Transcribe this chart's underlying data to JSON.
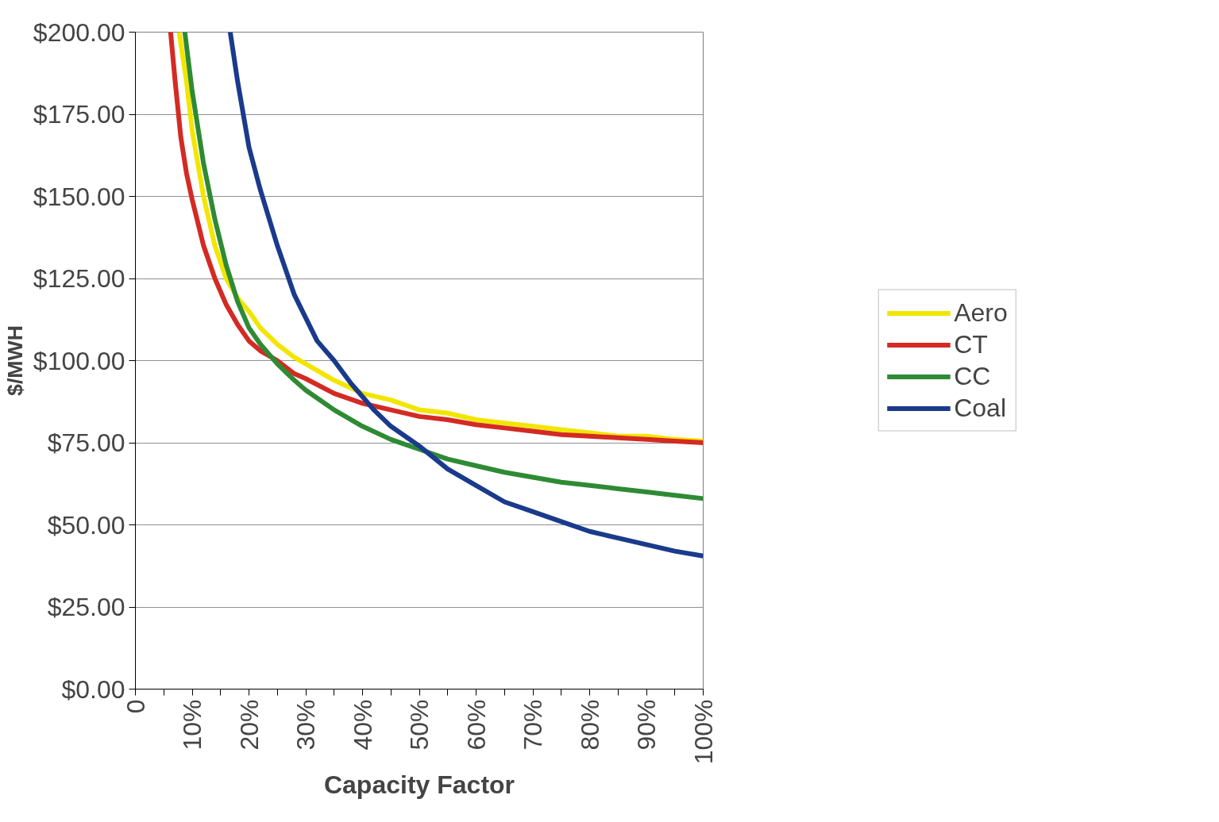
{
  "chart_data": {
    "type": "line",
    "xlabel": "Capacity Factor",
    "ylabel": "$/MWH",
    "xlim": [
      0,
      100
    ],
    "ylim": [
      0,
      200
    ],
    "xticks": [
      {
        "value": 0,
        "label": "0"
      },
      {
        "value": 5,
        "label": null
      },
      {
        "value": 10,
        "label": "10%"
      },
      {
        "value": 15,
        "label": null
      },
      {
        "value": 20,
        "label": "20%"
      },
      {
        "value": 25,
        "label": null
      },
      {
        "value": 30,
        "label": "30%"
      },
      {
        "value": 35,
        "label": null
      },
      {
        "value": 40,
        "label": "40%"
      },
      {
        "value": 45,
        "label": null
      },
      {
        "value": 50,
        "label": "50%"
      },
      {
        "value": 55,
        "label": null
      },
      {
        "value": 60,
        "label": "60%"
      },
      {
        "value": 65,
        "label": null
      },
      {
        "value": 70,
        "label": "70%"
      },
      {
        "value": 75,
        "label": null
      },
      {
        "value": 80,
        "label": "80%"
      },
      {
        "value": 85,
        "label": null
      },
      {
        "value": 90,
        "label": "90%"
      },
      {
        "value": 95,
        "label": null
      },
      {
        "value": 100,
        "label": "100%"
      }
    ],
    "yticks": [
      {
        "value": 0,
        "label": "$0.00"
      },
      {
        "value": 25,
        "label": "$25.00"
      },
      {
        "value": 50,
        "label": "$50.00"
      },
      {
        "value": 75,
        "label": "$75.00"
      },
      {
        "value": 100,
        "label": "$100.00"
      },
      {
        "value": 125,
        "label": "$125.00"
      },
      {
        "value": 150,
        "label": "$150.00"
      },
      {
        "value": 175,
        "label": "$175.00"
      },
      {
        "value": 200,
        "label": "$200.00"
      }
    ],
    "grid": "y",
    "legend": "right",
    "marker": "none",
    "line_style": "solid",
    "series": [
      {
        "name": "Aero",
        "color": "#f2e600",
        "x": [
          7.7,
          9,
          10,
          12,
          14,
          16,
          18,
          20,
          22,
          25,
          28,
          30,
          35,
          40,
          45,
          50,
          55,
          60,
          65,
          70,
          75,
          80,
          85,
          90,
          95,
          100
        ],
        "values": [
          200,
          185,
          170,
          150,
          135,
          125,
          119,
          115,
          110,
          105,
          101,
          99,
          94,
          90,
          88,
          85,
          84,
          82,
          81,
          80,
          79,
          78,
          77,
          77,
          76,
          75.5
        ]
      },
      {
        "name": "CT",
        "color": "#d42a24",
        "x": [
          6.2,
          7,
          8,
          9,
          10,
          12,
          14,
          16,
          18,
          20,
          22,
          25,
          28,
          30,
          35,
          40,
          45,
          50,
          55,
          60,
          65,
          70,
          75,
          80,
          85,
          90,
          95,
          100
        ],
        "values": [
          200,
          185,
          168,
          157,
          149,
          135,
          125,
          117,
          111,
          106,
          103,
          100,
          96,
          94.5,
          90,
          87,
          85,
          83,
          82,
          80.5,
          79.5,
          78.5,
          77.5,
          77,
          76.5,
          76,
          75.5,
          75
        ]
      },
      {
        "name": "CC",
        "color": "#2e8b34",
        "x": [
          8.7,
          10,
          12,
          14,
          16,
          18,
          20,
          22,
          25,
          28,
          30,
          35,
          40,
          45,
          50,
          55,
          60,
          65,
          70,
          75,
          80,
          85,
          90,
          95,
          100
        ],
        "values": [
          200,
          182,
          160,
          143,
          129,
          118,
          110,
          105,
          99,
          94,
          91,
          85,
          80,
          76,
          73,
          70,
          68,
          66,
          64.5,
          63,
          62,
          61,
          60,
          59,
          58
        ]
      },
      {
        "name": "Coal",
        "color": "#1a3a8c",
        "x": [
          16.7,
          18,
          20,
          22,
          25,
          28,
          30,
          32,
          35,
          38,
          40,
          42,
          45,
          50,
          55,
          60,
          65,
          70,
          75,
          80,
          85,
          90,
          95,
          100
        ],
        "values": [
          200,
          185,
          165,
          152,
          135,
          120,
          113,
          106,
          100,
          93,
          89,
          85,
          80,
          74,
          67,
          62,
          57,
          54,
          51,
          48,
          46,
          44,
          42,
          40.5
        ]
      }
    ]
  }
}
